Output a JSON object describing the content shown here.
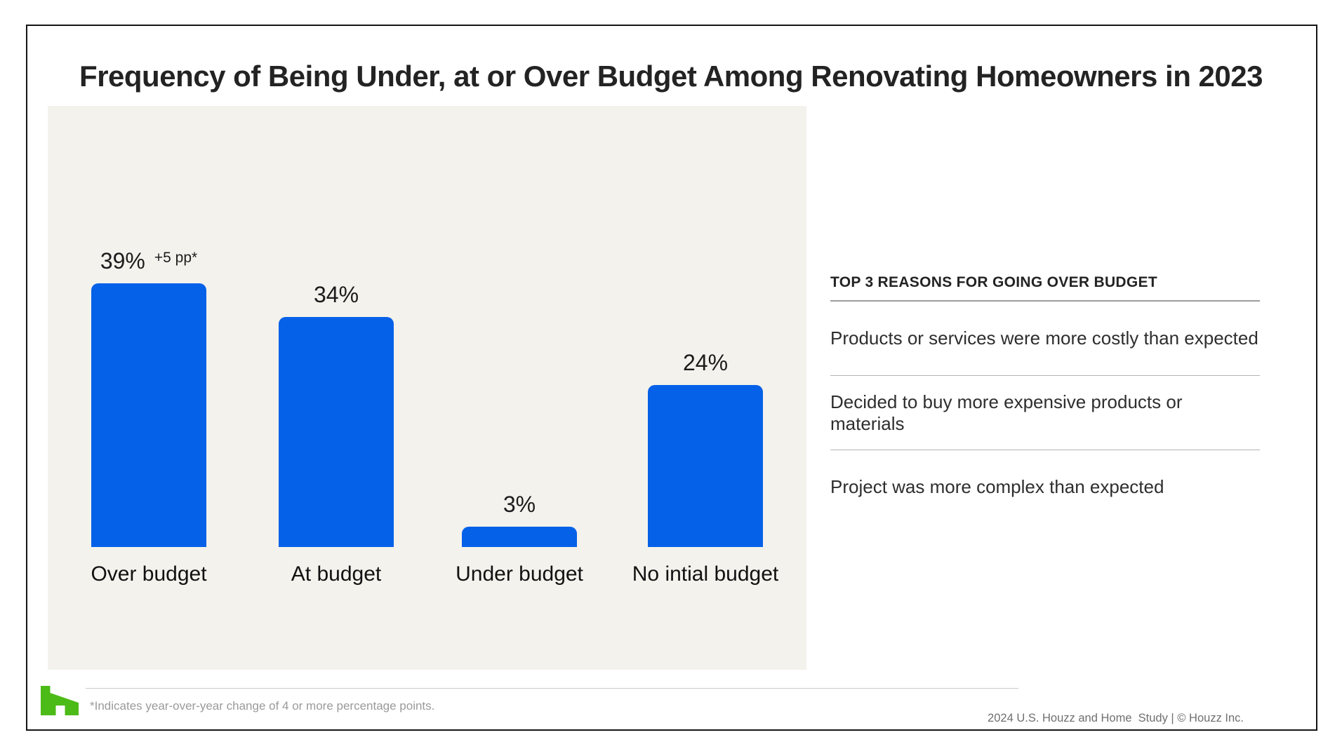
{
  "title": "Frequency of Being Under, at or Over Budget Among Renovating Homeowners in 2023",
  "chart_data": {
    "type": "bar",
    "categories": [
      "Over budget",
      "At budget",
      "Under budget",
      "No intial budget"
    ],
    "values": [
      39,
      34,
      3,
      24
    ],
    "value_labels": [
      "39%",
      "34%",
      "3%",
      "24%"
    ],
    "annotation": {
      "text": "+5 pp*",
      "applies_to": "Over budget"
    },
    "bar_color": "#0561e8",
    "panel_background": "#f4f2ed",
    "ylabel": "",
    "xlabel": "",
    "ylim": [
      0,
      45
    ],
    "grid": false,
    "axes_hidden": true
  },
  "reasons": {
    "header": "TOP 3 REASONS FOR GOING OVER BUDGET",
    "items": [
      "Products or services were more costly than expected",
      "Decided to buy more expensive products or materials",
      "Project was more complex than expected"
    ]
  },
  "footnote": "*Indicates year-over-year change of 4 or more percentage points.",
  "copyright": "2024 U.S. Houzz and Home  Study | © Houzz Inc.",
  "logo": {
    "name": "houzz-logo",
    "color": "#4cbb17"
  }
}
